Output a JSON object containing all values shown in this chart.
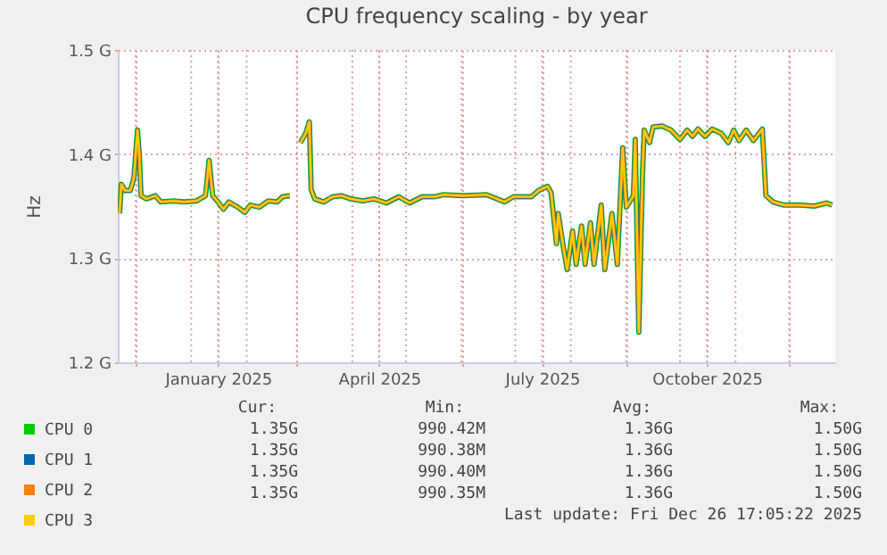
{
  "chart_data": {
    "type": "line",
    "title": "CPU frequency scaling - by year",
    "ylabel": "Hz",
    "x": [
      "2024-11-22",
      "2024-11-23",
      "2024-11-25",
      "2024-11-28",
      "2024-11-30",
      "2024-12-02",
      "2024-12-03",
      "2024-12-04",
      "2024-12-07",
      "2024-12-12",
      "2024-12-15",
      "2024-12-22",
      "2024-12-28",
      "2025-01-04",
      "2025-01-09",
      "2025-01-11",
      "2025-01-13",
      "2025-01-16",
      "2025-01-19",
      "2025-01-22",
      "2025-01-27",
      "2025-01-31",
      "2025-02-03",
      "2025-02-08",
      "2025-02-13",
      "2025-02-18",
      "2025-02-21",
      "2025-02-25",
      "2025-03-01",
      "2025-03-03",
      "2025-03-06",
      "2025-03-08",
      "2025-03-09",
      "2025-03-11",
      "2025-03-16",
      "2025-03-21",
      "2025-03-26",
      "2025-03-31",
      "2025-04-07",
      "2025-04-13",
      "2025-04-20",
      "2025-04-27",
      "2025-05-03",
      "2025-05-10",
      "2025-05-17",
      "2025-05-22",
      "2025-06-02",
      "2025-06-15",
      "2025-06-25",
      "2025-06-30",
      "2025-07-10",
      "2025-07-14",
      "2025-07-19",
      "2025-07-21",
      "2025-07-24",
      "2025-07-25",
      "2025-07-28",
      "2025-07-30",
      "2025-08-02",
      "2025-08-04",
      "2025-08-07",
      "2025-08-09",
      "2025-08-12",
      "2025-08-14",
      "2025-08-18",
      "2025-08-20",
      "2025-08-24",
      "2025-08-27",
      "2025-08-30",
      "2025-09-01",
      "2025-09-05",
      "2025-09-06",
      "2025-09-08",
      "2025-09-10",
      "2025-09-11",
      "2025-09-14",
      "2025-09-16",
      "2025-09-21",
      "2025-09-26",
      "2025-10-01",
      "2025-10-05",
      "2025-10-08",
      "2025-10-11",
      "2025-10-15",
      "2025-10-19",
      "2025-10-24",
      "2025-10-28",
      "2025-10-31",
      "2025-11-03",
      "2025-11-07",
      "2025-11-11",
      "2025-11-16",
      "2025-11-18",
      "2025-11-22",
      "2025-11-28",
      "2025-12-07",
      "2025-12-15",
      "2025-12-22",
      "2025-12-25"
    ],
    "series": [
      {
        "name": "CPU 0",
        "color": "#00cc00",
        "values": [
          1.343,
          1.371,
          1.365,
          1.365,
          1.377,
          1.423,
          1.4,
          1.36,
          1.357,
          1.36,
          1.354,
          1.355,
          1.354,
          1.355,
          1.36,
          1.394,
          1.36,
          1.354,
          1.347,
          1.354,
          1.349,
          1.344,
          1.351,
          1.349,
          1.355,
          1.354,
          1.359,
          1.36,
          null,
          1.411,
          1.42,
          1.431,
          1.366,
          1.357,
          1.354,
          1.359,
          1.36,
          1.357,
          1.355,
          1.357,
          1.353,
          1.359,
          1.353,
          1.359,
          1.359,
          1.361,
          1.36,
          1.361,
          1.354,
          1.359,
          1.359,
          1.365,
          1.369,
          1.363,
          1.314,
          1.343,
          1.309,
          1.289,
          1.326,
          1.294,
          1.331,
          1.294,
          1.334,
          1.294,
          1.351,
          1.289,
          1.343,
          1.294,
          1.406,
          1.349,
          1.36,
          1.414,
          1.229,
          1.377,
          1.423,
          1.411,
          1.426,
          1.427,
          1.423,
          1.414,
          1.423,
          1.417,
          1.424,
          1.417,
          1.424,
          1.42,
          1.411,
          1.423,
          1.413,
          1.423,
          1.413,
          1.424,
          1.36,
          1.354,
          1.351,
          1.351,
          1.35,
          1.353,
          1.351
        ]
      },
      {
        "name": "CPU 1",
        "color": "#0066b3",
        "values": [
          1.343,
          1.371,
          1.365,
          1.365,
          1.377,
          1.423,
          1.4,
          1.36,
          1.357,
          1.36,
          1.354,
          1.355,
          1.354,
          1.355,
          1.36,
          1.394,
          1.36,
          1.354,
          1.347,
          1.354,
          1.349,
          1.344,
          1.351,
          1.349,
          1.355,
          1.354,
          1.359,
          1.36,
          null,
          1.411,
          1.42,
          1.431,
          1.366,
          1.357,
          1.354,
          1.359,
          1.36,
          1.357,
          1.355,
          1.357,
          1.353,
          1.359,
          1.353,
          1.359,
          1.359,
          1.361,
          1.36,
          1.361,
          1.354,
          1.359,
          1.359,
          1.365,
          1.369,
          1.363,
          1.314,
          1.343,
          1.309,
          1.289,
          1.326,
          1.294,
          1.331,
          1.294,
          1.334,
          1.294,
          1.351,
          1.289,
          1.343,
          1.294,
          1.406,
          1.349,
          1.36,
          1.414,
          1.229,
          1.377,
          1.423,
          1.411,
          1.426,
          1.427,
          1.423,
          1.414,
          1.423,
          1.417,
          1.424,
          1.417,
          1.424,
          1.42,
          1.411,
          1.423,
          1.413,
          1.423,
          1.413,
          1.424,
          1.36,
          1.354,
          1.351,
          1.351,
          1.35,
          1.353,
          1.351
        ]
      },
      {
        "name": "CPU 2",
        "color": "#ff8000",
        "values": [
          1.343,
          1.371,
          1.365,
          1.365,
          1.377,
          1.423,
          1.4,
          1.36,
          1.357,
          1.36,
          1.354,
          1.355,
          1.354,
          1.355,
          1.36,
          1.394,
          1.36,
          1.354,
          1.347,
          1.354,
          1.349,
          1.344,
          1.351,
          1.349,
          1.355,
          1.354,
          1.359,
          1.36,
          null,
          1.411,
          1.42,
          1.431,
          1.366,
          1.357,
          1.354,
          1.359,
          1.36,
          1.357,
          1.355,
          1.357,
          1.353,
          1.359,
          1.353,
          1.359,
          1.359,
          1.361,
          1.36,
          1.361,
          1.354,
          1.359,
          1.359,
          1.365,
          1.369,
          1.363,
          1.314,
          1.343,
          1.309,
          1.289,
          1.326,
          1.294,
          1.331,
          1.294,
          1.334,
          1.294,
          1.351,
          1.289,
          1.343,
          1.294,
          1.406,
          1.349,
          1.36,
          1.414,
          1.229,
          1.377,
          1.423,
          1.411,
          1.426,
          1.427,
          1.423,
          1.414,
          1.423,
          1.417,
          1.424,
          1.417,
          1.424,
          1.42,
          1.411,
          1.423,
          1.413,
          1.423,
          1.413,
          1.424,
          1.36,
          1.354,
          1.351,
          1.351,
          1.35,
          1.353,
          1.351
        ]
      },
      {
        "name": "CPU 3",
        "color": "#ffcc00",
        "values": [
          1.343,
          1.371,
          1.365,
          1.365,
          1.377,
          1.423,
          1.4,
          1.36,
          1.357,
          1.36,
          1.354,
          1.355,
          1.354,
          1.355,
          1.36,
          1.394,
          1.36,
          1.354,
          1.347,
          1.354,
          1.349,
          1.344,
          1.351,
          1.349,
          1.355,
          1.354,
          1.359,
          1.36,
          null,
          1.411,
          1.42,
          1.431,
          1.366,
          1.357,
          1.354,
          1.359,
          1.36,
          1.357,
          1.355,
          1.357,
          1.353,
          1.359,
          1.353,
          1.359,
          1.359,
          1.361,
          1.36,
          1.361,
          1.354,
          1.359,
          1.359,
          1.365,
          1.369,
          1.363,
          1.314,
          1.343,
          1.309,
          1.289,
          1.326,
          1.294,
          1.331,
          1.294,
          1.334,
          1.294,
          1.351,
          1.289,
          1.343,
          1.294,
          1.406,
          1.349,
          1.36,
          1.414,
          1.229,
          1.377,
          1.423,
          1.411,
          1.426,
          1.427,
          1.423,
          1.414,
          1.423,
          1.417,
          1.424,
          1.417,
          1.424,
          1.42,
          1.411,
          1.423,
          1.413,
          1.423,
          1.413,
          1.424,
          1.36,
          1.354,
          1.351,
          1.351,
          1.35,
          1.353,
          1.351
        ]
      }
    ],
    "xlim": [
      "2024-11-21",
      "2025-12-26T17:05"
    ],
    "xticks": [
      {
        "value": "2024-12-01",
        "label": null
      },
      {
        "value": "2025-01-01",
        "label": null
      },
      {
        "value": "2025-02-01",
        "label": null
      },
      {
        "value": "2025-03-01",
        "label": null
      },
      {
        "value": "2025-04-01",
        "label": null
      },
      {
        "value": "2025-05-01",
        "label": null
      },
      {
        "value": "2025-06-01",
        "label": null
      },
      {
        "value": "2025-07-01",
        "label": null
      },
      {
        "value": "2025-08-01",
        "label": null
      },
      {
        "value": "2025-09-01",
        "label": null
      },
      {
        "value": "2025-10-01",
        "label": null
      },
      {
        "value": "2025-11-01",
        "label": null
      },
      {
        "value": "2025-12-01",
        "label": null
      },
      {
        "value": "2025-01-16",
        "label": "January 2025"
      },
      {
        "value": "2025-04-16",
        "label": "April 2025"
      },
      {
        "value": "2025-07-16",
        "label": "July 2025"
      },
      {
        "value": "2025-10-16",
        "label": "October 2025"
      }
    ],
    "ylim": [
      1.2,
      1.5
    ],
    "yticks": [
      {
        "value": 1.2,
        "label": "1.2 G"
      },
      {
        "value": 1.3,
        "label": "1.3 G"
      },
      {
        "value": 1.4,
        "label": "1.4 G"
      },
      {
        "value": 1.5,
        "label": "1.5 G"
      }
    ],
    "grid": true,
    "legend": "bottom",
    "annotations": [
      "Cur:",
      "Min:",
      "Avg:",
      "Max:",
      "1.35G",
      "990.42M",
      "1.36G",
      "1.50G",
      "1.35G",
      "990.38M",
      "1.36G",
      "1.50G",
      "1.35G",
      "990.40M",
      "1.36G",
      "1.50G",
      "1.35G",
      "990.35M",
      "1.36G",
      "1.50G",
      "Last update: Fri Dec 26 17:05:22 2025"
    ]
  }
}
